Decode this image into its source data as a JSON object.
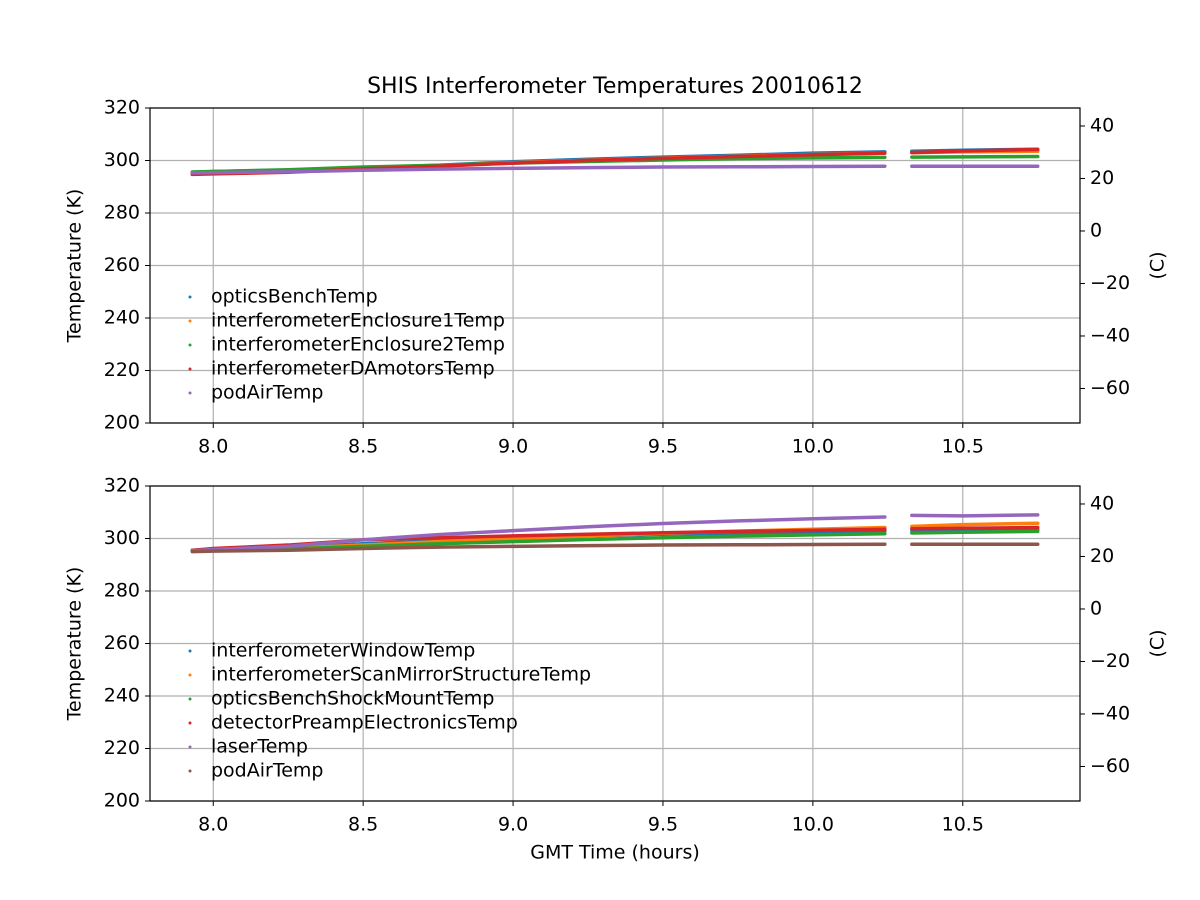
{
  "chart_data": [
    {
      "type": "line",
      "title": "SHIS Interferometer Temperatures 20010612",
      "ylabel": "Temperature (K)",
      "y2label": "(C)",
      "x": [
        7.93,
        8.0,
        8.25,
        8.5,
        8.75,
        9.0,
        9.25,
        9.5,
        9.75,
        10.0,
        10.24,
        10.29,
        10.33,
        10.5,
        10.75
      ],
      "xlim": [
        7.789,
        10.891
      ],
      "xticks": [
        {
          "value": 8.0,
          "label": "8.0"
        },
        8.5,
        {
          "value": 9.0,
          "label": "9.0"
        },
        9.5,
        {
          "value": 10.0,
          "label": "10.0"
        },
        10.5
      ],
      "ylim": [
        200,
        320
      ],
      "yticks": [
        200,
        220,
        240,
        260,
        280,
        300,
        320
      ],
      "y2lim": [
        -73.15,
        46.85
      ],
      "y2ticks": [
        {
          "value": -60,
          "label": "−60"
        },
        {
          "value": -40,
          "label": "−40"
        },
        {
          "value": -20,
          "label": "−20"
        },
        0,
        20,
        40
      ],
      "grid": true,
      "legend": "lower left",
      "series": [
        {
          "name": "opticsBenchTemp",
          "color": "#1f77b4",
          "values": [
            295.5,
            295.8,
            296.3,
            297.2,
            298.2,
            299.5,
            300.5,
            301.3,
            302.0,
            302.8,
            303.3,
            null,
            303.5,
            303.9,
            304.3
          ]
        },
        {
          "name": "interferometerEnclosure1Temp",
          "color": "#ff7f0e",
          "values": [
            295.3,
            295.6,
            296.1,
            297.0,
            298.0,
            299.2,
            300.1,
            300.9,
            301.6,
            302.3,
            302.8,
            null,
            303.0,
            303.3,
            303.5
          ]
        },
        {
          "name": "interferometerEnclosure2Temp",
          "color": "#2ca02c",
          "values": [
            295.6,
            295.8,
            296.5,
            297.5,
            298.2,
            299.0,
            299.6,
            300.2,
            300.7,
            301.0,
            301.2,
            null,
            301.3,
            301.4,
            301.5
          ]
        },
        {
          "name": "interferometerDAmotorsTemp",
          "color": "#d62728",
          "values": [
            294.7,
            294.9,
            295.5,
            296.8,
            297.8,
            299.0,
            300.0,
            300.8,
            301.5,
            302.2,
            302.8,
            null,
            303.0,
            303.6,
            304.2
          ]
        },
        {
          "name": "podAirTemp",
          "color": "#9467bd",
          "values": [
            295.3,
            295.4,
            295.7,
            296.3,
            296.7,
            297.0,
            297.3,
            297.5,
            297.6,
            297.7,
            297.8,
            null,
            297.8,
            297.8,
            297.8
          ]
        }
      ]
    },
    {
      "type": "line",
      "ylabel": "Temperature (K)",
      "y2label": "(C)",
      "xlabel": "GMT Time (hours)",
      "x": [
        7.93,
        8.0,
        8.25,
        8.5,
        8.75,
        9.0,
        9.25,
        9.5,
        9.75,
        10.0,
        10.24,
        10.29,
        10.33,
        10.5,
        10.75
      ],
      "xlim": [
        7.789,
        10.891
      ],
      "xticks": [
        {
          "value": 8.0,
          "label": "8.0"
        },
        8.5,
        {
          "value": 9.0,
          "label": "9.0"
        },
        9.5,
        {
          "value": 10.0,
          "label": "10.0"
        },
        10.5
      ],
      "ylim": [
        200,
        320
      ],
      "yticks": [
        200,
        220,
        240,
        260,
        280,
        300,
        320
      ],
      "y2lim": [
        -73.15,
        46.85
      ],
      "y2ticks": [
        {
          "value": -60,
          "label": "−60"
        },
        {
          "value": -40,
          "label": "−40"
        },
        {
          "value": -20,
          "label": "−20"
        },
        0,
        20,
        40
      ],
      "grid": true,
      "legend": "lower left",
      "series": [
        {
          "name": "interferometerWindowTemp",
          "color": "#1f77b4",
          "values": [
            295.5,
            295.9,
            296.5,
            298.0,
            299.2,
            300.2,
            301.0,
            301.6,
            302.1,
            302.5,
            302.8,
            null,
            303.0,
            303.2,
            303.4
          ]
        },
        {
          "name": "interferometerScanMirrorStructureTemp",
          "color": "#ff7f0e",
          "values": [
            295.3,
            295.6,
            296.3,
            297.5,
            298.8,
            300.0,
            301.0,
            302.0,
            302.8,
            303.5,
            304.2,
            null,
            304.6,
            305.3,
            305.8
          ]
        },
        {
          "name": "opticsBenchShockMountTemp",
          "color": "#2ca02c",
          "values": [
            295.3,
            295.5,
            296.0,
            297.0,
            298.0,
            298.8,
            299.6,
            300.3,
            300.9,
            301.4,
            301.8,
            null,
            302.1,
            302.4,
            302.7
          ]
        },
        {
          "name": "detectorPreampElectronicsTemp",
          "color": "#d62728",
          "values": [
            295.5,
            296.2,
            297.5,
            299.5,
            300.3,
            301.0,
            301.6,
            302.2,
            302.7,
            303.1,
            303.5,
            null,
            303.7,
            303.9,
            304.2
          ]
        },
        {
          "name": "laserTemp",
          "color": "#9467bd",
          "values": [
            295.3,
            295.8,
            297.0,
            299.5,
            301.5,
            303.0,
            304.5,
            305.7,
            306.7,
            307.5,
            308.2,
            null,
            308.8,
            308.6,
            309.0
          ]
        },
        {
          "name": "podAirTemp",
          "color": "#8c564b",
          "values": [
            295.0,
            295.2,
            295.5,
            296.2,
            296.7,
            297.0,
            297.3,
            297.5,
            297.6,
            297.7,
            297.8,
            null,
            297.8,
            297.8,
            297.8
          ]
        }
      ]
    }
  ]
}
